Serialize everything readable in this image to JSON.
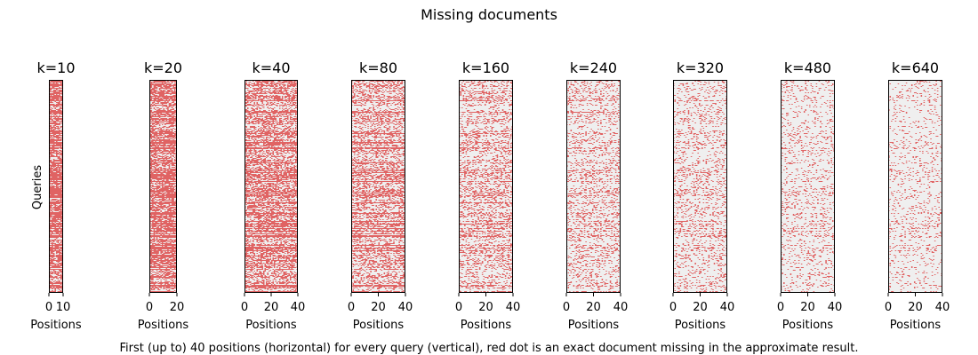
{
  "figure": {
    "title": "Missing documents",
    "caption": "First (up to) 40 positions (horizontal) for every query (vertical), red dot is an exact document missing in the approximate result."
  },
  "colors": {
    "background": "#efefef",
    "missing": "#e06363",
    "frame": "#000000"
  },
  "chart_data": {
    "type": "heatmap",
    "ylabel": "Queries",
    "xlabel": "Positions",
    "panels": [
      {
        "title": "k=10",
        "k": 10,
        "xlim": [
          0,
          10
        ],
        "xticks": [
          0,
          10
        ],
        "miss_rate": 0.88
      },
      {
        "title": "k=20",
        "k": 20,
        "xlim": [
          0,
          20
        ],
        "xticks": [
          0,
          20
        ],
        "miss_rate": 0.8
      },
      {
        "title": "k=40",
        "k": 40,
        "xlim": [
          0,
          40
        ],
        "xticks": [
          0,
          20,
          40
        ],
        "miss_rate": 0.62
      },
      {
        "title": "k=80",
        "k": 80,
        "xlim": [
          0,
          40
        ],
        "xticks": [
          0,
          20,
          40
        ],
        "miss_rate": 0.45
      },
      {
        "title": "k=160",
        "k": 160,
        "xlim": [
          0,
          40
        ],
        "xticks": [
          0,
          20,
          40
        ],
        "miss_rate": 0.3
      },
      {
        "title": "k=240",
        "k": 240,
        "xlim": [
          0,
          40
        ],
        "xticks": [
          0,
          20,
          40
        ],
        "miss_rate": 0.22
      },
      {
        "title": "k=320",
        "k": 320,
        "xlim": [
          0,
          40
        ],
        "xticks": [
          0,
          20,
          40
        ],
        "miss_rate": 0.18
      },
      {
        "title": "k=480",
        "k": 480,
        "xlim": [
          0,
          40
        ],
        "xticks": [
          0,
          20,
          40
        ],
        "miss_rate": 0.14
      },
      {
        "title": "k=640",
        "k": 640,
        "xlim": [
          0,
          40
        ],
        "xticks": [
          0,
          20,
          40
        ],
        "miss_rate": 0.11
      }
    ]
  }
}
